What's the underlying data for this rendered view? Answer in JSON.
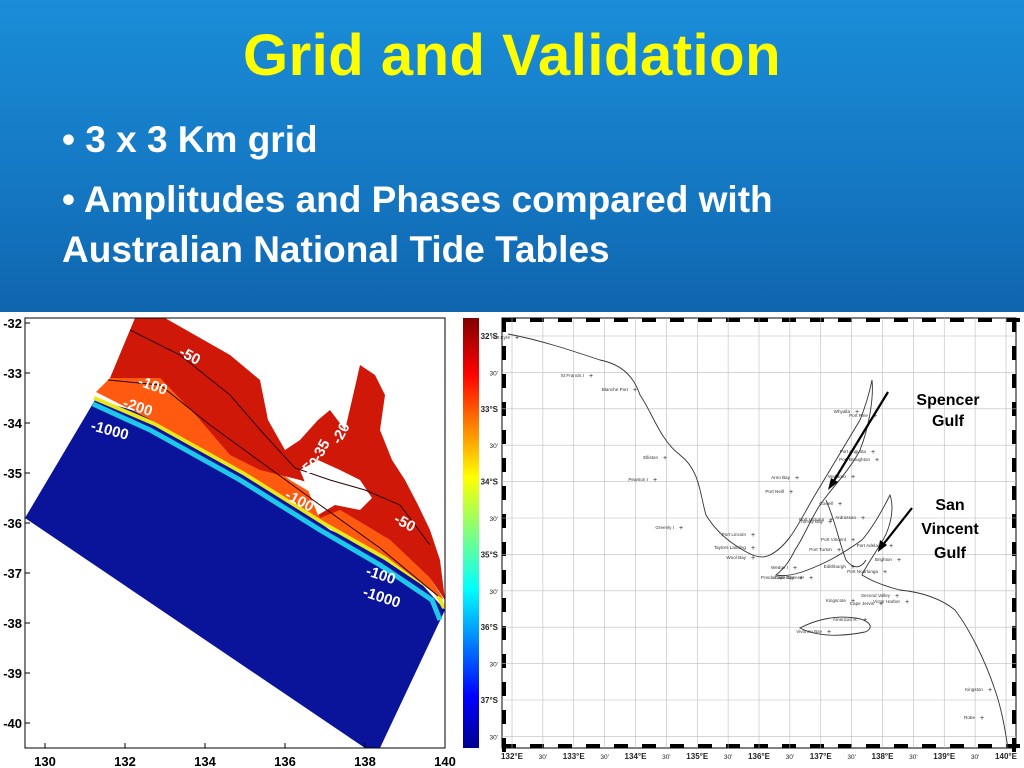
{
  "slide": {
    "title": "Grid and Validation",
    "bullets": [
      "•  3 x 3 Km grid",
      "• Amplitudes and Phases compared with",
      "Australian National Tide Tables"
    ],
    "colors": {
      "banner": "#1579c4",
      "title": "#ffff00",
      "bullet_text": "#ffffff"
    }
  },
  "left_map": {
    "x_ticks": [
      "130",
      "132",
      "134",
      "136",
      "138",
      "140"
    ],
    "y_ticks": [
      "-32",
      "-33",
      "-34",
      "-35",
      "-36",
      "-37",
      "-38",
      "-39",
      "-40"
    ],
    "contour_labels": [
      "-50",
      "-100",
      "-200",
      "-1000",
      "-35",
      "-20",
      "-50",
      "-100",
      "-50",
      "-100",
      "-1000"
    ],
    "colors": {
      "shelf": "#d01808",
      "slope": "#ff5a10",
      "deep": "#0a149a"
    }
  },
  "right_map": {
    "lon_ticks": [
      "132°E",
      "30'",
      "133°E",
      "30'",
      "134°E",
      "30'",
      "135°E",
      "30'",
      "136°E",
      "30'",
      "137°E",
      "30'",
      "138°E",
      "30'",
      "139°E",
      "30'",
      "140°E"
    ],
    "lat_ticks": [
      "32°S",
      "30'",
      "33°S",
      "30'",
      "34°S",
      "30'",
      "35°S",
      "30'",
      "36°S",
      "30'",
      "37°S",
      "30'"
    ],
    "annotations": [
      {
        "label": "Spencer\nGulf"
      },
      {
        "label": "San\nVincent\nGulf"
      }
    ],
    "stations": [
      "Fort Eyre",
      "St Francis I",
      "Blanche Port",
      "Elliston",
      "Pearson I",
      "Whyalla",
      "Port Pirie",
      "Port Augusta",
      "Arno Bay",
      "Port Neill",
      "Wallaroo",
      "Cowell",
      "Port Broughton",
      "Tumby Bay",
      "Port Victoria",
      "Ardrossan",
      "Greenly I",
      "Port Lincoln",
      "Port Vincent",
      "Port Turton",
      "Taylors Landing",
      "Wool Bay",
      "Edithburgh",
      "Port Adelaide",
      "Brighton",
      "Port Noarlunga",
      "Wedge I",
      "Pondalowie Bay",
      "Cape Spencer",
      "Victor Harbor",
      "Second Valley",
      "Cape Jervis",
      "Kingscote",
      "American R.",
      "Vivonne Bay",
      "Kingston",
      "Robe"
    ],
    "colorbar": "jet"
  },
  "chart_data": [
    {
      "type": "heatmap",
      "title": "",
      "xlabel": "",
      "ylabel": "",
      "xlim": [
        129.5,
        140
      ],
      "ylim": [
        -40.5,
        -31.9
      ],
      "x_ticks": [
        130,
        132,
        134,
        136,
        138,
        140
      ],
      "y_ticks": [
        -32,
        -33,
        -34,
        -35,
        -36,
        -37,
        -38,
        -39,
        -40
      ],
      "series": [
        {
          "values": [
            -50,
            -100,
            -200,
            -1000,
            -35,
            -20,
            -50,
            -100,
            -50,
            -100,
            -1000
          ]
        }
      ]
    },
    {
      "type": "scatter",
      "title": "",
      "xlabel": "",
      "ylabel": "",
      "xlim": [
        132,
        140
      ],
      "ylim": [
        -37.8,
        -31.9
      ],
      "x_ticks": [
        "132°E",
        "133°E",
        "134°E",
        "135°E",
        "136°E",
        "137°E",
        "138°E",
        "139°E",
        "140°E"
      ],
      "y_ticks": [
        "32°S",
        "33°S",
        "34°S",
        "35°S",
        "36°S",
        "37°S"
      ],
      "grid": true
    }
  ]
}
